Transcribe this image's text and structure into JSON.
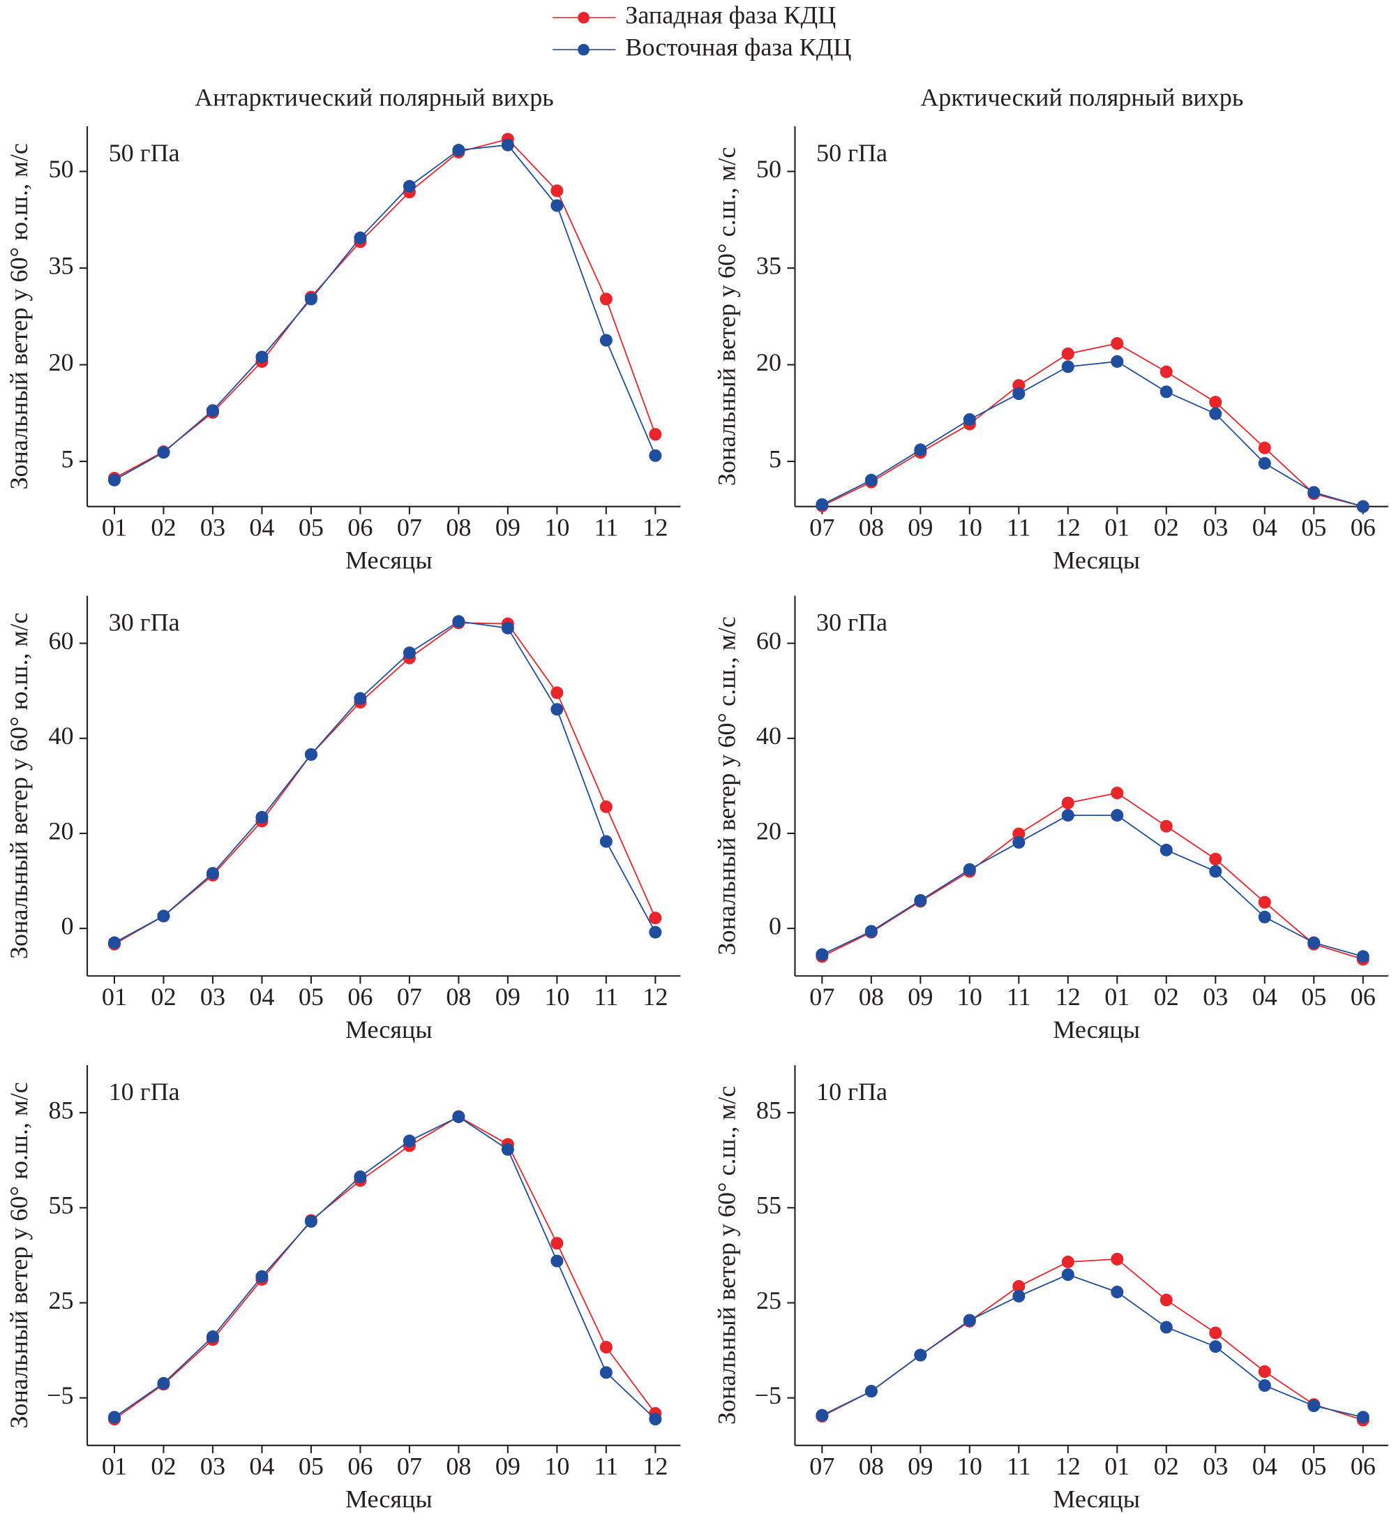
{
  "chart_data": [
    {
      "type": "line",
      "title": "Антарктический полярный вихрь",
      "annotation": "50 гПа",
      "xlabel": "Месяцы",
      "ylabel": "Зональный ветер у 60° ю.ш., м/с",
      "categories": [
        "01",
        "02",
        "03",
        "04",
        "05",
        "06",
        "07",
        "08",
        "09",
        "10",
        "11",
        "12"
      ],
      "ylim": [
        -2,
        57
      ],
      "yticks": [
        5,
        20,
        35,
        50
      ],
      "series": [
        {
          "name": "Западная фаза КДЦ",
          "color": "#e8252b",
          "values": [
            2.4,
            6.5,
            12.6,
            20.5,
            30.5,
            39.1,
            46.8,
            53,
            55,
            47,
            30.2,
            9.2
          ]
        },
        {
          "name": "Восточная фаза КДЦ",
          "color": "#1f4e9e",
          "values": [
            2.1,
            6.4,
            12.9,
            21.2,
            30.2,
            39.7,
            47.7,
            53.3,
            54.1,
            44.7,
            23.8,
            5.9
          ]
        }
      ]
    },
    {
      "type": "line",
      "title": "Арктический полярный вихрь",
      "annotation": "50 гПа",
      "xlabel": "Месяцы",
      "ylabel": "Зональный ветер у 60° с.ш., м/с",
      "categories": [
        "07",
        "08",
        "09",
        "10",
        "11",
        "12",
        "01",
        "02",
        "03",
        "04",
        "05",
        "06"
      ],
      "ylim": [
        -2,
        57
      ],
      "yticks": [
        5,
        20,
        35,
        50
      ],
      "series": [
        {
          "color": "#e8252b",
          "values": [
            -1.9,
            1.8,
            6.4,
            10.8,
            16.8,
            21.7,
            23.3,
            18.9,
            14.2,
            7.1,
            0,
            -2
          ]
        },
        {
          "color": "#1f4e9e",
          "values": [
            -1.7,
            2.1,
            6.8,
            11.5,
            15.5,
            19.7,
            20.5,
            15.8,
            12.4,
            4.7,
            0.2,
            -2
          ]
        }
      ]
    },
    {
      "type": "line",
      "annotation": "30 гПа",
      "xlabel": "Месяцы",
      "ylabel": "Зональный ветер у 60° ю.ш., м/с",
      "categories": [
        "01",
        "02",
        "03",
        "04",
        "05",
        "06",
        "07",
        "08",
        "09",
        "10",
        "11",
        "12"
      ],
      "ylim": [
        -10,
        70
      ],
      "yticks": [
        0,
        20,
        40,
        60
      ],
      "series": [
        {
          "color": "#e8252b",
          "values": [
            -3.3,
            2.6,
            11.2,
            22.6,
            36.6,
            47.6,
            56.9,
            64.3,
            64.1,
            49.6,
            25.6,
            2.2
          ]
        },
        {
          "color": "#1f4e9e",
          "values": [
            -3,
            2.6,
            11.6,
            23.4,
            36.6,
            48.4,
            58,
            64.6,
            63.2,
            46.1,
            18.3,
            -0.8
          ]
        }
      ]
    },
    {
      "type": "line",
      "annotation": "30 гПа",
      "xlabel": "Месяцы",
      "ylabel": "Зональный ветер у 60° с.ш., м/с",
      "categories": [
        "07",
        "08",
        "09",
        "10",
        "11",
        "12",
        "01",
        "02",
        "03",
        "04",
        "05",
        "06"
      ],
      "ylim": [
        -10,
        70
      ],
      "yticks": [
        0,
        20,
        40,
        60
      ],
      "series": [
        {
          "color": "#e8252b",
          "values": [
            -5.9,
            -0.8,
            5.7,
            12,
            19.9,
            26.4,
            28.5,
            21.5,
            14.6,
            5.5,
            -3.3,
            -6.5
          ]
        },
        {
          "color": "#1f4e9e",
          "values": [
            -5.5,
            -0.6,
            5.9,
            12.4,
            18.1,
            23.8,
            23.8,
            16.5,
            12,
            2.4,
            -3,
            -5.9
          ]
        }
      ]
    },
    {
      "type": "line",
      "annotation": "10 гПа",
      "xlabel": "Месяцы",
      "ylabel": "Зональный ветер у 60° ю.ш., м/с",
      "categories": [
        "01",
        "02",
        "03",
        "04",
        "05",
        "06",
        "07",
        "08",
        "09",
        "10",
        "11",
        "12"
      ],
      "ylim": [
        -20,
        100
      ],
      "yticks": [
        {
          "value": -5,
          "label": "−5"
        },
        25,
        55,
        85
      ],
      "series": [
        {
          "color": "#e8252b",
          "values": [
            -11.7,
            -0.7,
            13.4,
            32.4,
            51,
            63.6,
            74.6,
            83.8,
            75,
            43.8,
            11,
            -9.9
          ]
        },
        {
          "color": "#1f4e9e",
          "values": [
            -11.1,
            -0.4,
            14.3,
            33.3,
            50.7,
            64.8,
            76.1,
            83.7,
            73.4,
            38.2,
            3,
            -11.7
          ]
        }
      ]
    },
    {
      "type": "line",
      "annotation": "10 гПа",
      "xlabel": "Месяцы",
      "ylabel": "Зональный ветер у 60° с.ш., м/с",
      "categories": [
        "07",
        "08",
        "09",
        "10",
        "11",
        "12",
        "01",
        "02",
        "03",
        "04",
        "05",
        "06"
      ],
      "ylim": [
        -20,
        100
      ],
      "yticks": [
        {
          "value": -5,
          "label": "−5"
        },
        25,
        55,
        85
      ],
      "series": [
        {
          "color": "#e8252b",
          "values": [
            -10.8,
            -2.9,
            8.5,
            19.2,
            30.2,
            37.9,
            38.8,
            25.9,
            15.5,
            3.3,
            -7.1,
            -12
          ]
        },
        {
          "color": "#1f4e9e",
          "values": [
            -10.5,
            -2.9,
            8.5,
            19.5,
            27.1,
            33.9,
            28.4,
            17.3,
            11.2,
            -1.1,
            -7.5,
            -11.1
          ]
        }
      ]
    }
  ]
}
